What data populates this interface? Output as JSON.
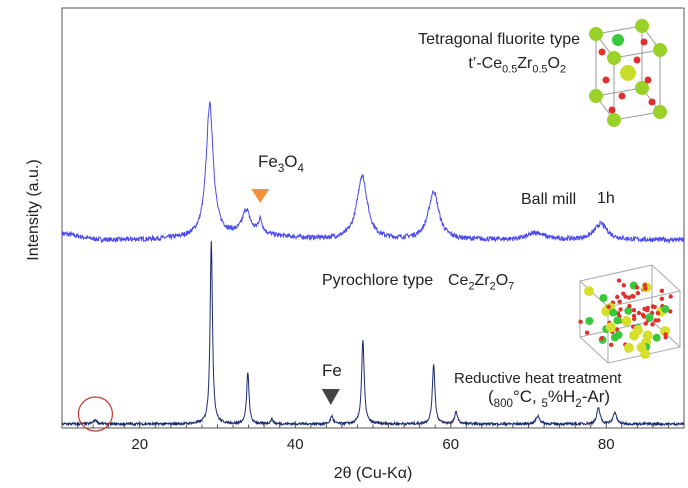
{
  "chart_data": {
    "type": "line",
    "title": "",
    "xlabel": "2θ (Cu-Kα)",
    "ylabel": "Intensity (a.u.)",
    "xlim": [
      10,
      90
    ],
    "x_ticks": [
      20,
      40,
      60,
      80
    ],
    "y_ticks": [],
    "grid": false,
    "legend": "none",
    "series": [
      {
        "name": "Ball mill 1h",
        "color": "#4a4af0",
        "baseline": 0.46,
        "peaks": [
          {
            "x": 29.0,
            "h": 0.33,
            "w": 0.55
          },
          {
            "x": 33.7,
            "h": 0.06,
            "w": 0.6
          },
          {
            "x": 35.5,
            "h": 0.035,
            "w": 0.35
          },
          {
            "x": 48.6,
            "h": 0.16,
            "w": 0.8
          },
          {
            "x": 57.8,
            "h": 0.12,
            "w": 0.8
          },
          {
            "x": 71.0,
            "h": 0.018,
            "w": 1.2
          },
          {
            "x": 79.3,
            "h": 0.04,
            "w": 1.0
          }
        ]
      },
      {
        "name": "Reductive heat treatment",
        "color": "#1a2a70",
        "baseline": 0.0,
        "peaks": [
          {
            "x": 14.3,
            "h": 0.01,
            "w": 0.3
          },
          {
            "x": 29.2,
            "h": 0.46,
            "w": 0.18
          },
          {
            "x": 33.9,
            "h": 0.13,
            "w": 0.18
          },
          {
            "x": 37.0,
            "h": 0.012,
            "w": 0.2
          },
          {
            "x": 44.7,
            "h": 0.02,
            "w": 0.2
          },
          {
            "x": 48.7,
            "h": 0.21,
            "w": 0.2
          },
          {
            "x": 57.8,
            "h": 0.15,
            "w": 0.2
          },
          {
            "x": 60.7,
            "h": 0.03,
            "w": 0.22
          },
          {
            "x": 71.2,
            "h": 0.02,
            "w": 0.3
          },
          {
            "x": 79.0,
            "h": 0.04,
            "w": 0.25
          },
          {
            "x": 81.1,
            "h": 0.03,
            "w": 0.25
          }
        ]
      }
    ],
    "annotations": {
      "top_phase_line1": "Tetragonal fluorite type",
      "top_phase_line2": "t’-Ce0.5Zr0.5O2",
      "top_trace_label_a": "Ball mill",
      "top_trace_label_b": "1h",
      "fe3o4_label": "Fe3O4",
      "fe3o4_marker_x": 35.5,
      "fe3o4_marker_color": "#f4903a",
      "pyro_label_a": "Pyrochlore type",
      "pyro_label_b": "Ce2Zr2O7",
      "fe_label": "Fe",
      "fe_marker_x": 44.7,
      "fe_marker_color": "#444444",
      "bottom_label_line1": "Reductive heat treatment",
      "bottom_label_line2": "(800°C, 5%H2-Ar)",
      "circle_x": 14.3,
      "circle_color": "#c0392b"
    }
  }
}
